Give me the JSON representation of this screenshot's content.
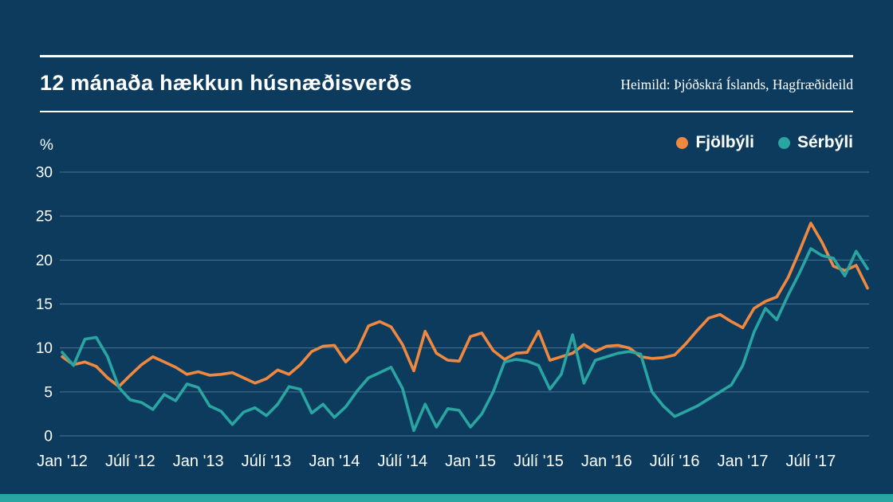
{
  "page": {
    "background_color": "#0d3b5e",
    "footer_bar_color": "#29a5a2",
    "text_color": "#ffffff"
  },
  "header": {
    "title": "12 mánaða hækkun húsnæðisverðs",
    "source": "Heimild: Þjóðskrá Íslands, Hagfræðideild"
  },
  "chart_data": {
    "type": "line",
    "title": "12 mánaða hækkun húsnæðisverðs",
    "unit_label": "%",
    "ylim": [
      0,
      30
    ],
    "y_ticks": [
      0,
      5,
      10,
      15,
      20,
      25,
      30
    ],
    "x_tick_labels": [
      "Jan '12",
      "Júlí '12",
      "Jan '13",
      "Júlí '13",
      "Jan '14",
      "Júlí '14",
      "Jan '15",
      "Júlí '15",
      "Jan '16",
      "Júlí '16",
      "Jan '17",
      "Júlí '17"
    ],
    "x_tick_indices": [
      0,
      6,
      12,
      18,
      24,
      30,
      36,
      42,
      48,
      54,
      60,
      66
    ],
    "grid": true,
    "grid_color": "#4a7490",
    "legend_position": "top-right",
    "series": [
      {
        "name": "Fjölbýli",
        "color": "#f0883f",
        "values": [
          9.0,
          8.1,
          8.4,
          7.9,
          6.6,
          5.6,
          6.9,
          8.1,
          9.0,
          8.4,
          7.8,
          7.0,
          7.3,
          6.9,
          7.0,
          7.2,
          6.6,
          6.0,
          6.5,
          7.5,
          7.0,
          8.1,
          9.6,
          10.2,
          10.3,
          8.4,
          9.7,
          12.5,
          13.0,
          12.4,
          10.4,
          7.4,
          11.9,
          9.4,
          8.6,
          8.5,
          11.3,
          11.7,
          9.7,
          8.7,
          9.4,
          9.5,
          11.9,
          8.6,
          9.0,
          9.4,
          10.4,
          9.6,
          10.2,
          10.3,
          10.0,
          9.0,
          8.8,
          8.9,
          9.2,
          10.5,
          12.0,
          13.4,
          13.8,
          13.0,
          12.3,
          14.5,
          15.3,
          15.8,
          18.0,
          21.0,
          24.2,
          22.0,
          19.3,
          18.8,
          19.4,
          16.8
        ]
      },
      {
        "name": "Sérbýli",
        "color": "#29a5a2",
        "values": [
          9.5,
          8.0,
          11.0,
          11.2,
          9.0,
          5.5,
          4.1,
          3.8,
          3.0,
          4.7,
          4.0,
          5.9,
          5.5,
          3.4,
          2.8,
          1.3,
          2.7,
          3.2,
          2.3,
          3.6,
          5.6,
          5.3,
          2.6,
          3.6,
          2.1,
          3.3,
          5.1,
          6.6,
          7.2,
          7.8,
          5.4,
          0.6,
          3.6,
          1.0,
          3.1,
          2.9,
          1.0,
          2.5,
          5.0,
          8.4,
          8.7,
          8.5,
          8.0,
          5.3,
          7.0,
          11.5,
          6.0,
          8.6,
          9.0,
          9.4,
          9.6,
          9.3,
          5.0,
          3.4,
          2.2,
          2.8,
          3.4,
          4.2,
          5.0,
          5.8,
          8.0,
          11.8,
          14.5,
          13.2,
          16.0,
          18.5,
          21.3,
          20.5,
          20.2,
          18.2,
          21.0,
          19.0
        ]
      }
    ]
  }
}
